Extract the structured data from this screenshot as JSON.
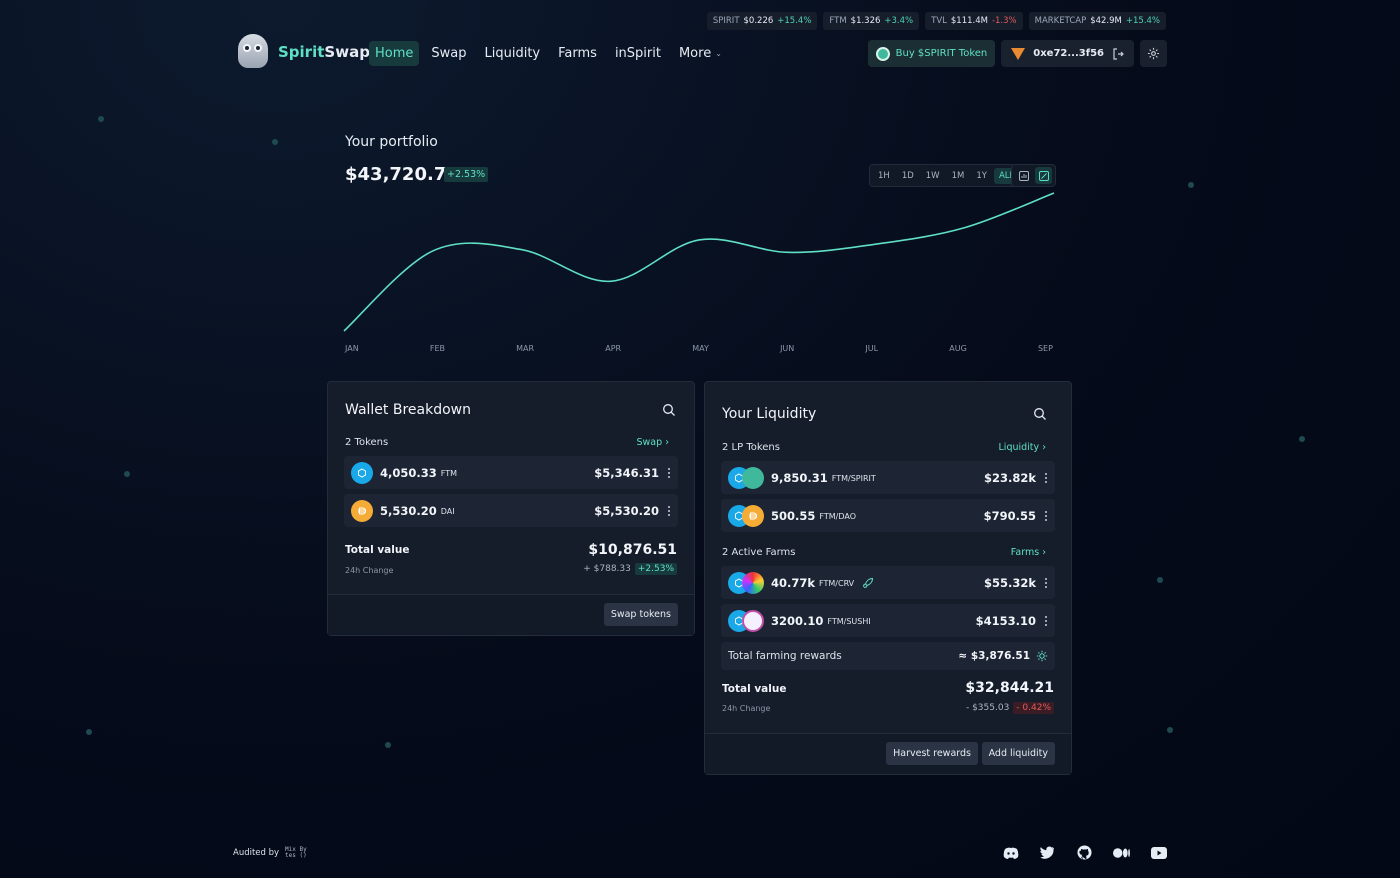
{
  "ticker": [
    {
      "label": "SPIRIT",
      "value": "$0.226",
      "change": "+15.4%",
      "dir": "up"
    },
    {
      "label": "FTM",
      "value": "$1.326",
      "change": "+3.4%",
      "dir": "up"
    },
    {
      "label": "TVL",
      "value": "$111.4M",
      "change": "-1.3%",
      "dir": "down"
    },
    {
      "label": "MARKETCAP",
      "value": "$42.9M",
      "change": "+15.4%",
      "dir": "up"
    }
  ],
  "brand": {
    "part1": "Spirit",
    "part2": "Swap"
  },
  "nav": {
    "home": "Home",
    "swap": "Swap",
    "liquidity": "Liquidity",
    "farms": "Farms",
    "inspirit": "inSpirit",
    "more": "More"
  },
  "header": {
    "buy": "Buy $SPIRIT Token",
    "wallet": "0xe72...3f56"
  },
  "portfolio": {
    "title": "Your portfolio",
    "value": "$43,720.72",
    "change": "+2.53%",
    "ranges": [
      "1H",
      "1D",
      "1W",
      "1M",
      "1Y",
      "ALL"
    ],
    "active_range": "ALL"
  },
  "chart_data": {
    "type": "line",
    "categories": [
      "JAN",
      "FEB",
      "MAR",
      "APR",
      "MAY",
      "JUN",
      "JUL",
      "AUG",
      "SEP"
    ],
    "series": [
      {
        "values": [
          0,
          0.58,
          0.59,
          0.36,
          0.66,
          0.57,
          0.63,
          0.75,
          1.0
        ]
      }
    ],
    "ylim": [
      0,
      1
    ],
    "grid": false,
    "color": "#5fe0c4"
  },
  "wallet": {
    "title": "Wallet Breakdown",
    "count": "2 Tokens",
    "link": "Swap",
    "tokens": [
      {
        "amount": "4,050.33",
        "symbol": "FTM",
        "value": "$5,346.31"
      },
      {
        "amount": "5,530.20",
        "symbol": "DAI",
        "value": "$5,530.20"
      }
    ],
    "total_label": "Total value",
    "total_value": "$10,876.51",
    "change_label": "24h Change",
    "change_abs": "+ $788.33",
    "change_pct": "+2.53%",
    "button": "Swap tokens"
  },
  "liquidity": {
    "title": "Your Liquidity",
    "lp_count": "2 LP Tokens",
    "lp_link": "Liquidity",
    "lp": [
      {
        "amount": "9,850.31",
        "pair": "FTM/SPIRIT",
        "value": "$23.82k"
      },
      {
        "amount": "500.55",
        "pair": "FTM/DAO",
        "value": "$790.55"
      }
    ],
    "farm_count": "2 Active Farms",
    "farm_link": "Farms",
    "farms": [
      {
        "amount": "40.77k",
        "pair": "FTM/CRV",
        "value": "$55.32k"
      },
      {
        "amount": "3200.10",
        "pair": "FTM/SUSHI",
        "value": "$4153.10"
      }
    ],
    "rewards_label": "Total farming rewards",
    "rewards_value": "≈ $3,876.51",
    "total_label": "Total value",
    "total_value": "$32,844.21",
    "change_label": "24h Change",
    "change_abs": "- $355.03",
    "change_pct": "- 0.42%",
    "harvest": "Harvest rewards",
    "add": "Add liquidity"
  },
  "footer": {
    "audited": "Audited by",
    "auditor": "Mix Bytes ()"
  },
  "colors": {
    "accent": "#5fe0c4",
    "negative": "#e05a5a",
    "background": "#050b1a",
    "card": "#151c2a"
  }
}
